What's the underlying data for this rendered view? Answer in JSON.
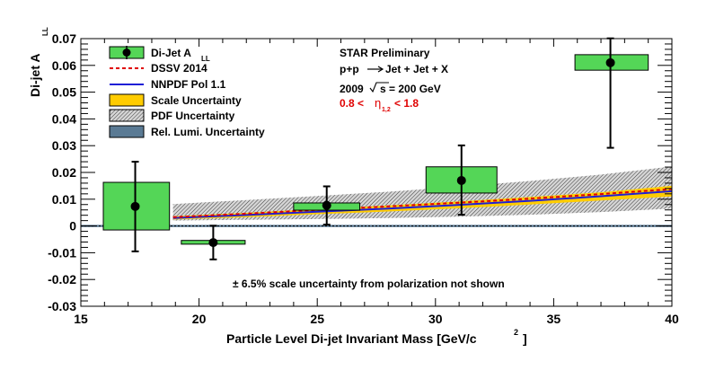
{
  "chart_data": {
    "type": "scatter",
    "xlabel": "Particle Level Di-jet Invariant Mass [GeV/c",
    "xlabel_superscript": "2",
    "xlabel_close": "]",
    "ylabel": "Di-jet A",
    "ylabel_subscript": "LL",
    "xlim": [
      15,
      40
    ],
    "ylim": [
      -0.03,
      0.07
    ],
    "xticks": [
      15,
      20,
      25,
      30,
      35,
      40
    ],
    "xtick_labels": [
      "15",
      "20",
      "25",
      "30",
      "35",
      "40"
    ],
    "yticks": [
      -0.03,
      -0.02,
      -0.01,
      0,
      0.01,
      0.02,
      0.03,
      0.04,
      0.05,
      0.06,
      0.07
    ],
    "ytick_labels": [
      "-0.03",
      "-0.02",
      "-0.01",
      "0",
      "0.01",
      "0.02",
      "0.03",
      "0.04",
      "0.05",
      "0.06",
      "0.07"
    ],
    "grid": false,
    "legend_position": "top-left",
    "legend": [
      {
        "label": "Di-Jet A",
        "sub": "LL",
        "kind": "marker-box"
      },
      {
        "label": "DSSV 2014",
        "sub": "",
        "kind": "dashed-red"
      },
      {
        "label": "NNPDF Pol 1.1",
        "sub": "",
        "kind": "solid-blue"
      },
      {
        "label": "Scale Uncertainty",
        "sub": "",
        "kind": "yellow-fill"
      },
      {
        "label": "PDF Uncertainty",
        "sub": "",
        "kind": "hatch"
      },
      {
        "label": "Rel. Lumi. Uncertainty",
        "sub": "",
        "kind": "slate-fill"
      }
    ],
    "annotations": {
      "experiment": "STAR Preliminary",
      "reaction_a": "p+p",
      "reaction_b": "Jet + Jet + X",
      "year": "2009",
      "sqrt_s": "s = 200 GeV",
      "eta_a": "0.8 <",
      "eta_sym": "η",
      "eta_sub": "1,2",
      "eta_b": "< 1.8",
      "note": "± 6.5% scale uncertainty from polarization not shown"
    },
    "series": [
      {
        "name": "Di-Jet A_LL",
        "points": [
          {
            "x": 17.3,
            "y": 0.0073,
            "yerr_low": 0.0168,
            "yerr_high": 0.0167,
            "sys_xlow": 15.95,
            "sys_xhigh": 18.75,
            "sys_ylow": -0.0015,
            "sys_yhigh": 0.0163
          },
          {
            "x": 20.6,
            "y": -0.0062,
            "yerr_low": 0.0063,
            "yerr_high": 0.0063,
            "sys_xlow": 19.25,
            "sys_xhigh": 21.95,
            "sys_ylow": -0.0068,
            "sys_yhigh": -0.0054
          },
          {
            "x": 25.4,
            "y": 0.0077,
            "yerr_low": 0.0072,
            "yerr_high": 0.0071,
            "sys_xlow": 24.0,
            "sys_xhigh": 26.8,
            "sys_ylow": 0.0059,
            "sys_yhigh": 0.0086
          },
          {
            "x": 31.1,
            "y": 0.017,
            "yerr_low": 0.0128,
            "yerr_high": 0.0131,
            "sys_xlow": 29.6,
            "sys_xhigh": 32.6,
            "sys_ylow": 0.0123,
            "sys_yhigh": 0.0221
          },
          {
            "x": 37.4,
            "y": 0.061,
            "yerr_low": 0.0318,
            "yerr_high": 0.0091,
            "sys_xlow": 35.9,
            "sys_xhigh": 39.0,
            "sys_ylow": 0.0582,
            "sys_yhigh": 0.064
          }
        ]
      },
      {
        "name": "DSSV 2014",
        "x": [
          18.9,
          22,
          25,
          28,
          31,
          34,
          37,
          40
        ],
        "y": [
          0.0033,
          0.0046,
          0.006,
          0.0073,
          0.0087,
          0.0102,
          0.0119,
          0.0138
        ]
      },
      {
        "name": "NNPDF Pol 1.1",
        "x": [
          18.9,
          22,
          25,
          28,
          31,
          34,
          37,
          40
        ],
        "y": [
          0.003,
          0.0041,
          0.0053,
          0.0065,
          0.0079,
          0.0094,
          0.0111,
          0.013
        ]
      },
      {
        "name": "Scale Uncertainty",
        "x": [
          18.9,
          22,
          25,
          28,
          31,
          34,
          37,
          40
        ],
        "low": [
          0.0024,
          0.0033,
          0.0044,
          0.0054,
          0.0066,
          0.008,
          0.0095,
          0.011
        ],
        "high": [
          0.0036,
          0.0049,
          0.0063,
          0.0077,
          0.0092,
          0.0108,
          0.0126,
          0.015
        ]
      },
      {
        "name": "PDF Uncertainty",
        "x": [
          18.9,
          22,
          25,
          28,
          31,
          34,
          37,
          40
        ],
        "low": [
          0.002,
          0.0023,
          0.0026,
          0.003,
          0.0035,
          0.0042,
          0.0052,
          0.0065
        ],
        "high": [
          0.0082,
          0.0097,
          0.0112,
          0.0128,
          0.0147,
          0.0168,
          0.0192,
          0.0222
        ]
      },
      {
        "name": "Rel. Lumi. Uncertainty",
        "x": [
          15,
          40
        ],
        "low": [
          -0.0004,
          -0.0004
        ],
        "high": [
          0.0004,
          0.0004
        ]
      }
    ]
  }
}
